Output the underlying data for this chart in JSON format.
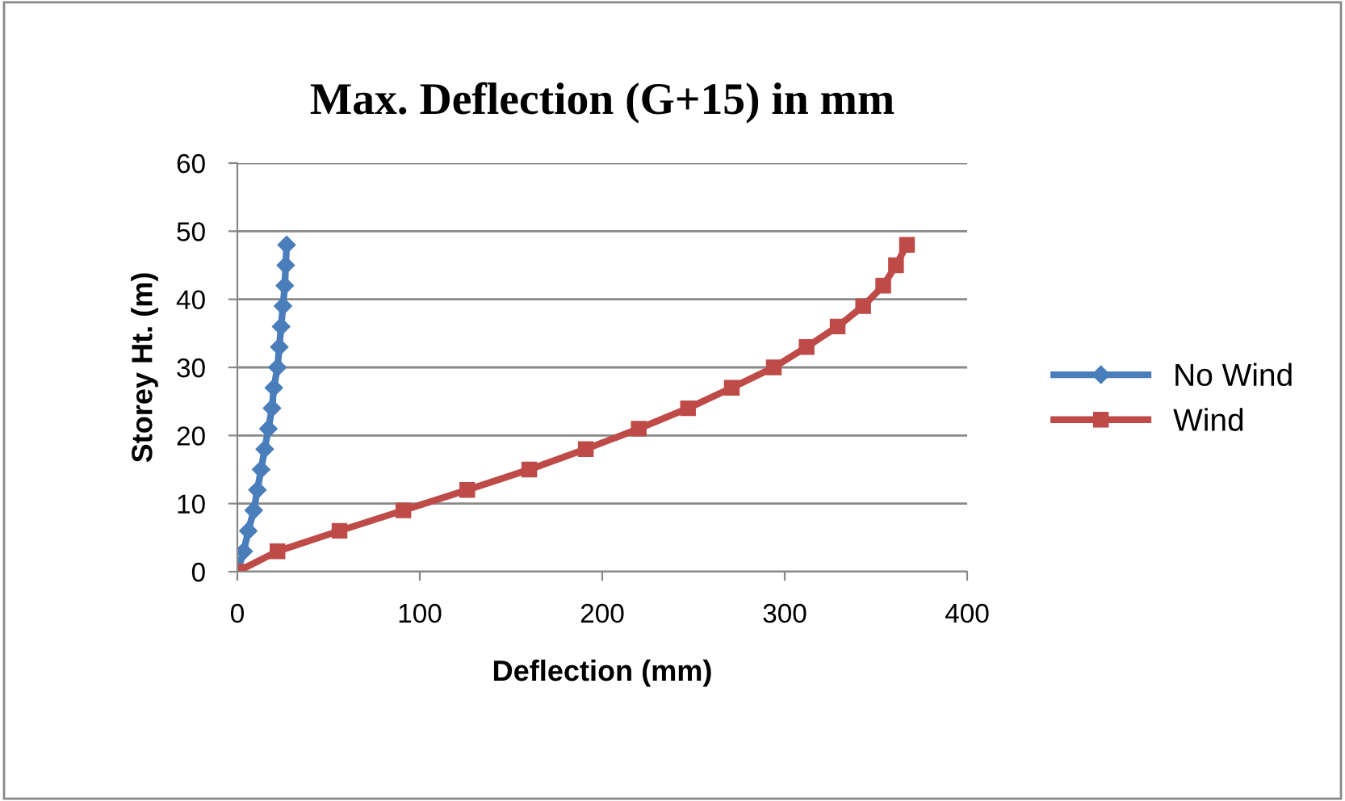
{
  "chart_data": {
    "type": "line",
    "title": "Max. Deflection (G+15) in mm",
    "xlabel": "Deflection (mm)",
    "ylabel": "Storey Ht. (m)",
    "xlim": [
      0,
      400
    ],
    "xticks": [
      0,
      100,
      200,
      300,
      400
    ],
    "ylim": [
      0,
      60
    ],
    "yticks": [
      0,
      10,
      20,
      30,
      40,
      50,
      60
    ],
    "grid": "y",
    "legend": "right",
    "series": [
      {
        "name": "No Wind",
        "color": "#4a7ebb",
        "marker": "diamond",
        "x": [
          0,
          3.5,
          6,
          9,
          11,
          13,
          15,
          17,
          19,
          20,
          22,
          23,
          24,
          25,
          26,
          26.5,
          27
        ],
        "values": [
          0,
          3,
          6,
          9,
          12,
          15,
          18,
          21,
          24,
          27,
          30,
          33,
          36,
          39,
          42,
          45,
          48
        ]
      },
      {
        "name": "Wind",
        "color": "#be4b48",
        "marker": "square",
        "x": [
          0,
          22,
          56,
          91,
          126,
          160,
          191,
          220,
          247,
          271,
          294,
          312,
          329,
          343,
          354,
          361,
          367
        ],
        "values": [
          0,
          3,
          6,
          9,
          12,
          15,
          18,
          21,
          24,
          27,
          30,
          33,
          36,
          39,
          42,
          45,
          48
        ]
      }
    ]
  }
}
